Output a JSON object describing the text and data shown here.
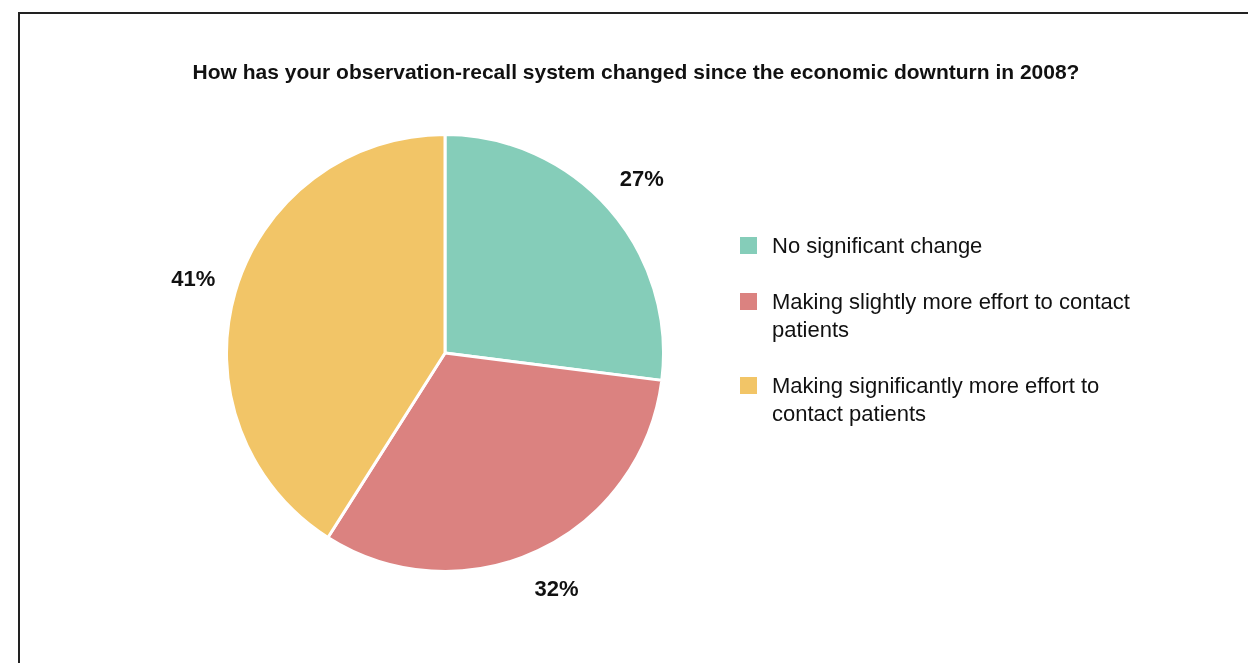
{
  "chart_data": {
    "type": "pie",
    "title": "How has your observation-recall system changed since the economic downturn in 2008?",
    "categories": [
      "No significant change",
      "Making slightly more effort to contact patients",
      "Making significantly more effort to contact patients"
    ],
    "values": [
      27,
      32,
      41
    ],
    "colors": [
      "#85cdb9",
      "#db8280",
      "#f2c567"
    ],
    "value_labels": [
      "27%",
      "32%",
      "41%"
    ],
    "legend": "right"
  }
}
